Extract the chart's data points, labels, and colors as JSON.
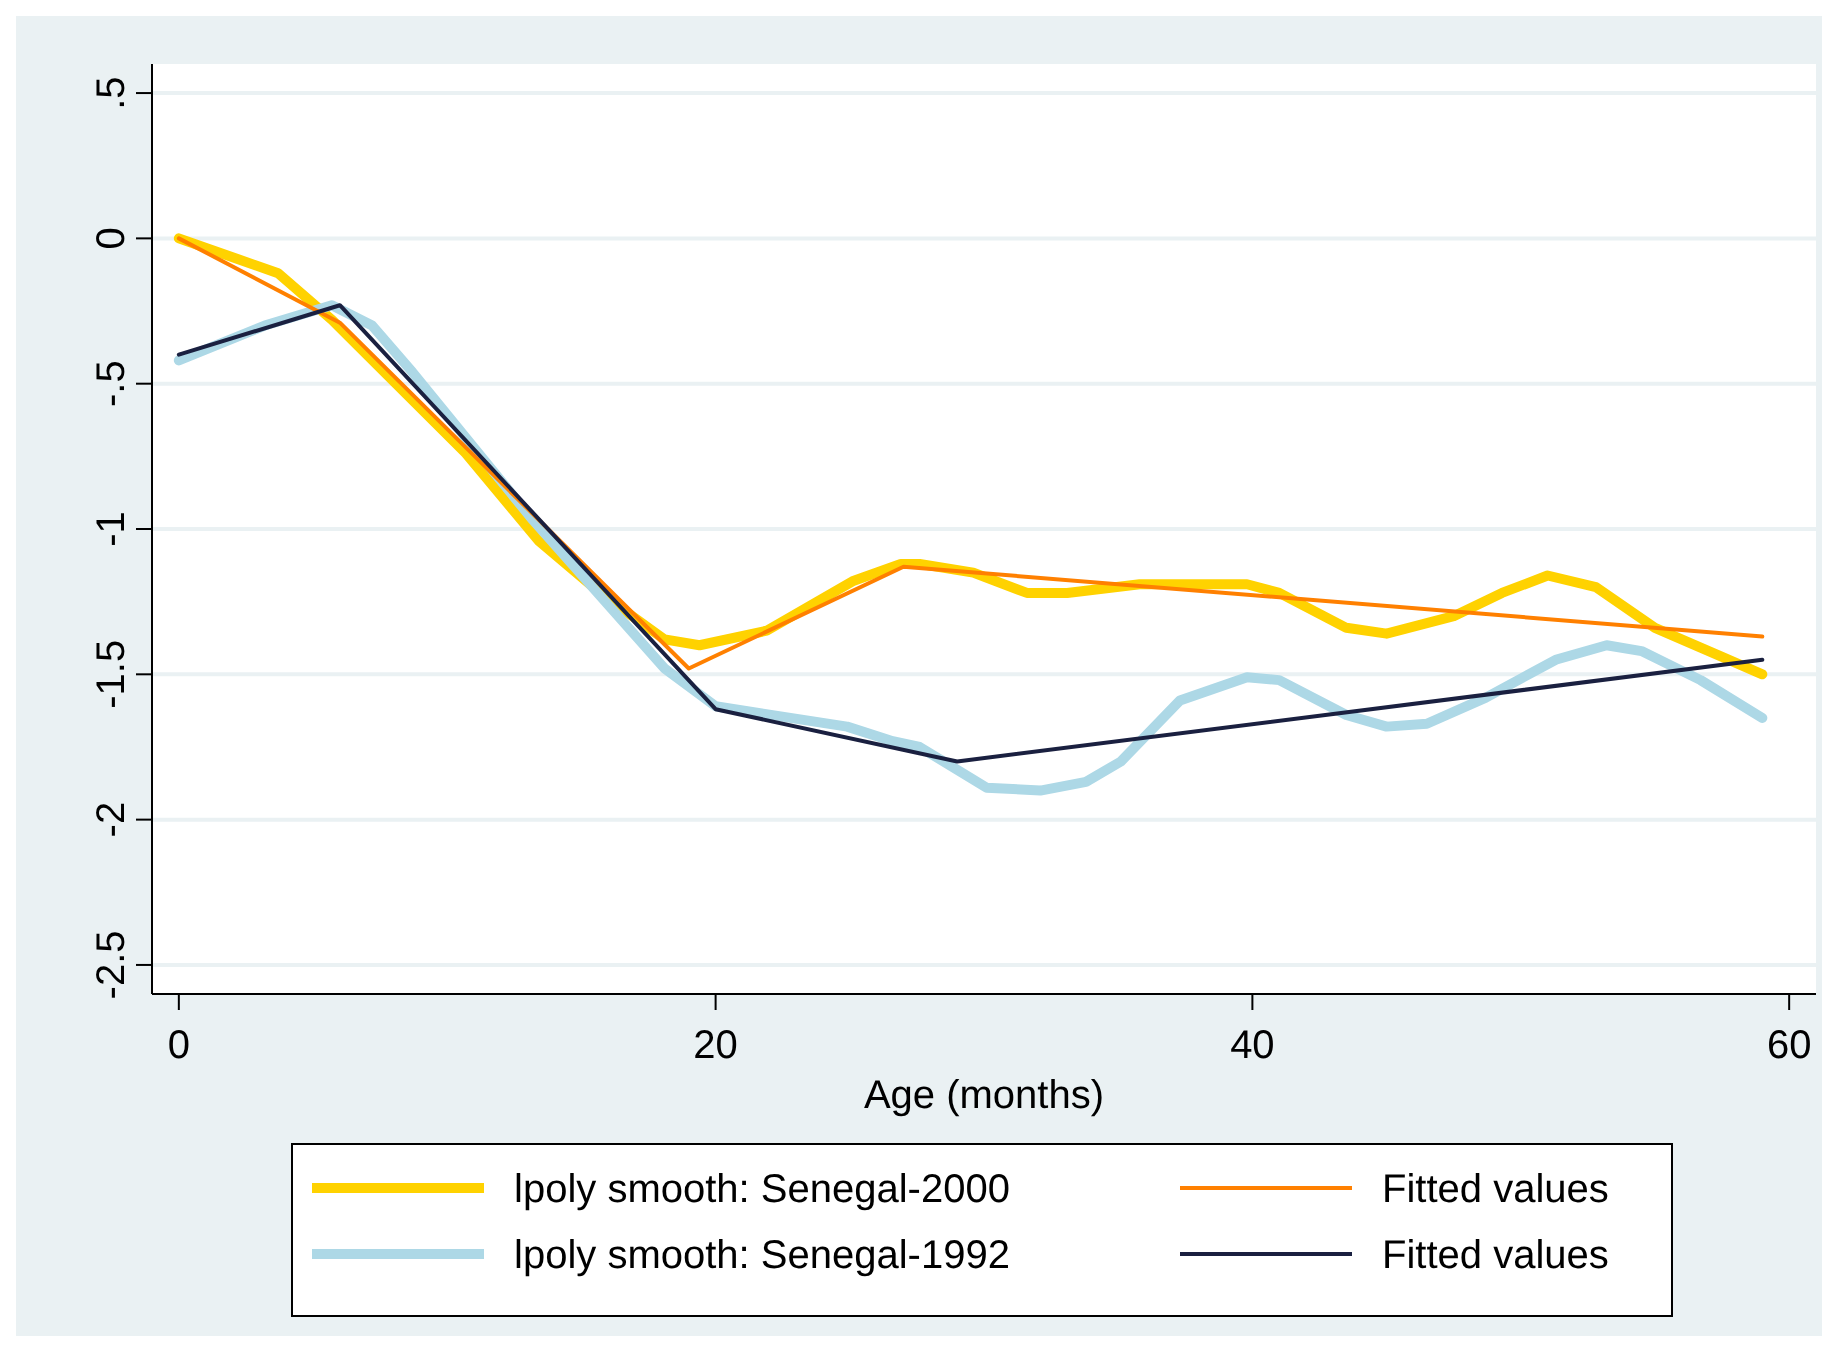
{
  "chart_data": {
    "type": "line",
    "xlabel": "Age (months)",
    "xlim": [
      -1,
      61
    ],
    "xticks": [
      0,
      20,
      40,
      60
    ],
    "ylim": [
      -2.6,
      0.6
    ],
    "yticks": [
      {
        "value": 0.5,
        "label": ".5"
      },
      0,
      {
        "value": -0.5,
        "label": "-.5"
      },
      -1,
      {
        "value": -1.5,
        "label": "-1.5"
      },
      -2,
      {
        "value": -2.5,
        "label": "-2.5"
      }
    ],
    "grid": "y",
    "legend": "bottom",
    "series": [
      {
        "name": "lpoly smooth: Senegal-2000",
        "color": "#ffd200",
        "x": [
          0,
          3.7,
          5.7,
          10.7,
          13.4,
          15.7,
          18.1,
          19.4,
          21.9,
          25.1,
          26.9,
          27.6,
          29.6,
          31.6,
          33.1,
          35.8,
          39.8,
          41,
          43.5,
          45,
          47.5,
          49.3,
          51,
          52.8,
          55,
          57.5,
          59
        ],
        "values": [
          0,
          -0.12,
          -0.28,
          -0.74,
          -1.04,
          -1.22,
          -1.38,
          -1.4,
          -1.35,
          -1.18,
          -1.12,
          -1.12,
          -1.15,
          -1.22,
          -1.22,
          -1.19,
          -1.19,
          -1.22,
          -1.34,
          -1.36,
          -1.3,
          -1.22,
          -1.16,
          -1.2,
          -1.34,
          -1.44,
          -1.5
        ]
      },
      {
        "name": "lpoly smooth: Senegal-1992",
        "color": "#add8e6",
        "x": [
          0,
          3.2,
          5.7,
          7.2,
          8.7,
          13.2,
          18.1,
          20,
          24.9,
          26.6,
          27.6,
          30.1,
          32.1,
          33.8,
          35.1,
          37.3,
          39.8,
          41,
          43.5,
          45,
          46.5,
          48.7,
          51.3,
          53.2,
          54.5,
          56.7,
          59
        ],
        "values": [
          -0.42,
          -0.3,
          -0.23,
          -0.3,
          -0.46,
          -0.97,
          -1.48,
          -1.61,
          -1.68,
          -1.73,
          -1.75,
          -1.89,
          -1.9,
          -1.87,
          -1.8,
          -1.59,
          -1.51,
          -1.52,
          -1.64,
          -1.68,
          -1.67,
          -1.58,
          -1.45,
          -1.4,
          -1.42,
          -1.52,
          -1.65
        ]
      },
      {
        "name": "Fitted values",
        "color": "#ff8000",
        "x": [
          0,
          6,
          19,
          27,
          59
        ],
        "values": [
          0,
          -0.29,
          -1.48,
          -1.13,
          -1.37
        ]
      },
      {
        "name": "Fitted values",
        "color": "#1a2040",
        "x": [
          0,
          6,
          20,
          29,
          59
        ],
        "values": [
          -0.4,
          -0.23,
          -1.62,
          -1.8,
          -1.45
        ]
      }
    ]
  }
}
